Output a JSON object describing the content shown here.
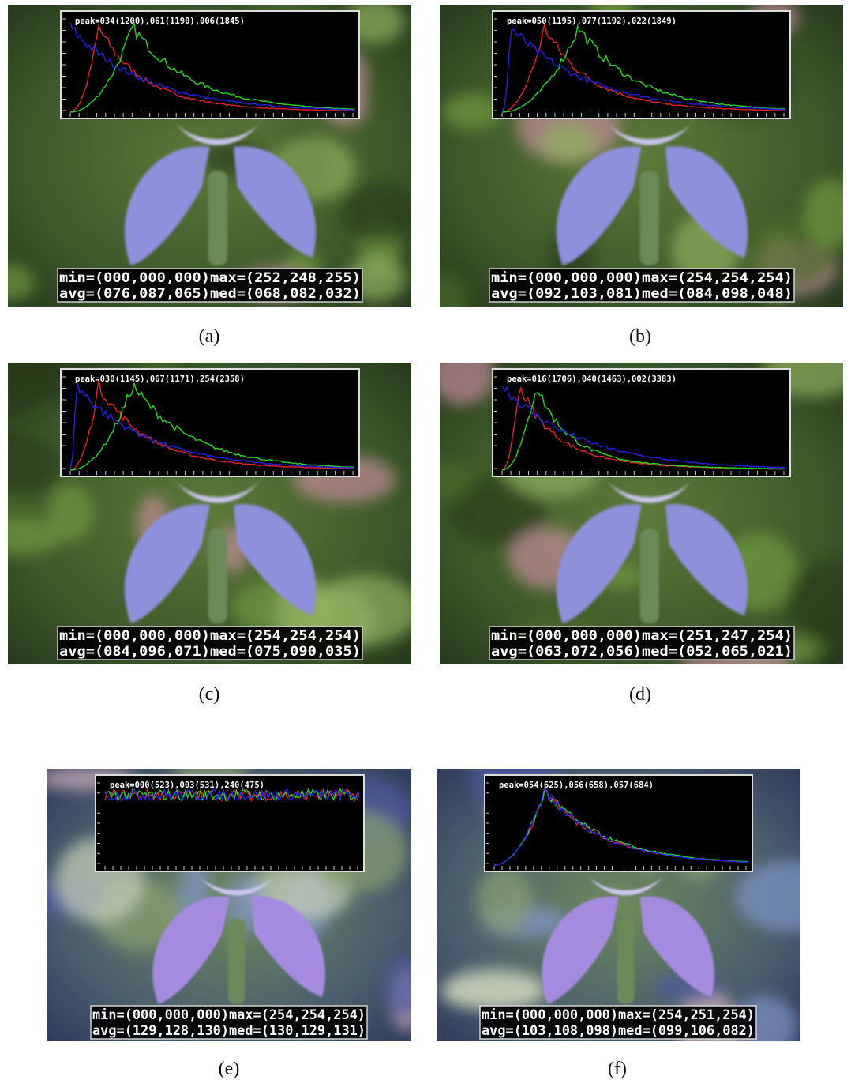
{
  "panels": [
    {
      "label": "(a)",
      "peak": "peak=034(1200),061(1190),006(1845)",
      "stats": [
        "min=(000,000,000)max=(252,248,255)",
        "avg=(076,087,065)med=(068,082,032)"
      ]
    },
    {
      "label": "(b)",
      "peak": "peak=050(1195),077(1192),022(1849)",
      "stats": [
        "min=(000,000,000)max=(254,254,254)",
        "avg=(092,103,081)med=(084,098,048)"
      ]
    },
    {
      "label": "(c)",
      "peak": "peak=030(1145),067(1171),254(2358)",
      "stats": [
        "min=(000,000,000)max=(254,254,254)",
        "avg=(084,096,071)med=(075,090,035)"
      ]
    },
    {
      "label": "(d)",
      "peak": "peak=016(1706),040(1463),002(3383)",
      "stats": [
        "min=(000,000,000)max=(251,247,254)",
        "avg=(063,072,056)med=(052,065,021)"
      ]
    },
    {
      "label": "(e)",
      "peak": "peak=000(523),003(531),240(475)",
      "stats": [
        "min=(000,000,000)max=(254,254,254)",
        "avg=(129,128,130)med=(130,129,131)"
      ]
    },
    {
      "label": "(f)",
      "peak": "peak=054(625),056(658),057(684)",
      "stats": [
        "min=(000,000,000)max=(254,251,254)",
        "avg=(103,108,098)med=(099,106,082)"
      ]
    }
  ]
}
